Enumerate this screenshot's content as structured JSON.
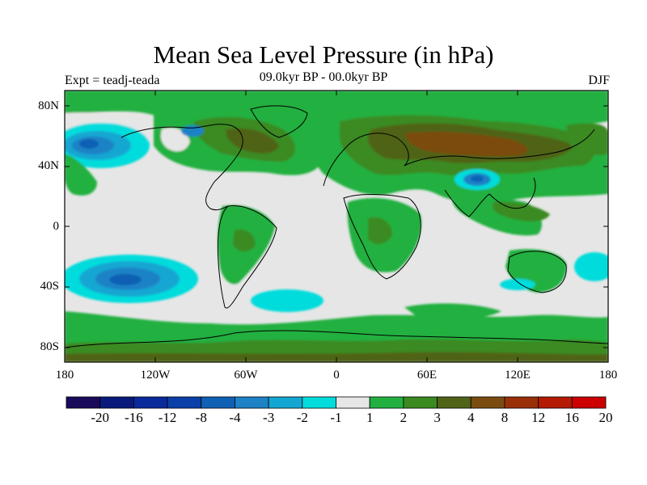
{
  "title": "Mean Sea Level Pressure (in hPa)",
  "experiment_label": "Expt = teadj-teada",
  "period_label": "09.0kyr BP - 00.0kyr BP",
  "season_label": "DJF",
  "lat_labels": [
    "80N",
    "40N",
    "0",
    "40S",
    "80S"
  ],
  "lon_labels": [
    "180",
    "120W",
    "60W",
    "0",
    "60E",
    "120E",
    "180"
  ],
  "colorbar": {
    "labels": [
      "-20",
      "-16",
      "-12",
      "-8",
      "-4",
      "-3",
      "-2",
      "-1",
      "1",
      "2",
      "3",
      "4",
      "8",
      "12",
      "16",
      "20"
    ],
    "colors": [
      "#1a0a5c",
      "#0a1a7c",
      "#0a2a9c",
      "#0a40a8",
      "#1060b4",
      "#1e82c6",
      "#14a6d2",
      "#00dcdc",
      "#e6e6e6",
      "#22b040",
      "#3a8a20",
      "#506418",
      "#7a4c10",
      "#9a3008",
      "#b41a04",
      "#cc0000"
    ]
  }
}
